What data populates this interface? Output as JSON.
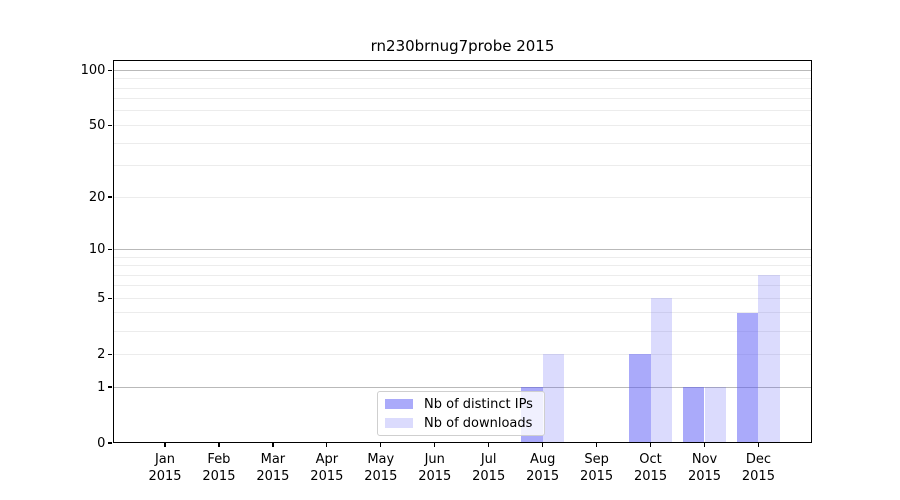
{
  "chart_data": {
    "type": "bar",
    "title": "rn230brnug7probe 2015",
    "categories": [
      {
        "month": "Jan",
        "year": "2015"
      },
      {
        "month": "Feb",
        "year": "2015"
      },
      {
        "month": "Mar",
        "year": "2015"
      },
      {
        "month": "Apr",
        "year": "2015"
      },
      {
        "month": "May",
        "year": "2015"
      },
      {
        "month": "Jun",
        "year": "2015"
      },
      {
        "month": "Jul",
        "year": "2015"
      },
      {
        "month": "Aug",
        "year": "2015"
      },
      {
        "month": "Sep",
        "year": "2015"
      },
      {
        "month": "Oct",
        "year": "2015"
      },
      {
        "month": "Nov",
        "year": "2015"
      },
      {
        "month": "Dec",
        "year": "2015"
      }
    ],
    "series": [
      {
        "name": "Nb of distinct IPs",
        "color": "rgba(85,85,246,0.5)",
        "values": [
          0,
          0,
          0,
          0,
          0,
          0,
          0,
          1,
          0,
          2,
          1,
          4
        ]
      },
      {
        "name": "Nb of downloads",
        "color": "rgba(85,85,246,0.21)",
        "values": [
          0,
          0,
          0,
          0,
          0,
          0,
          0,
          2,
          0,
          5,
          1,
          7
        ]
      }
    ],
    "yscale": "log10(1+x)",
    "ylim": [
      0,
      114
    ],
    "ytick_labels": [
      "100",
      "50",
      "20",
      "10",
      "5",
      "2",
      "1",
      "0"
    ],
    "grid": {
      "major_at": [
        1,
        10,
        100
      ],
      "minor_at": [
        2,
        3,
        4,
        5,
        6,
        7,
        8,
        9,
        20,
        30,
        40,
        50,
        60,
        70,
        80,
        90
      ]
    },
    "legend_position": "inside-bottom-center"
  }
}
